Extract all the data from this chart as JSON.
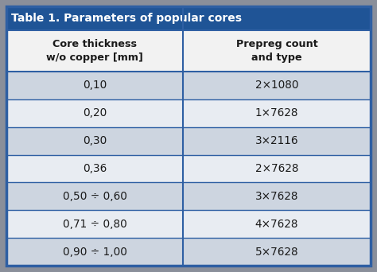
{
  "title": "Table 1. Parameters of popular cores",
  "col1_header": "Core thickness\nw/o copper [mm]",
  "col2_header": "Prepreg count\nand type",
  "rows": [
    [
      "0,10",
      "2×1080"
    ],
    [
      "0,20",
      "1×7628"
    ],
    [
      "0,30",
      "3×2116"
    ],
    [
      "0,36",
      "2×7628"
    ],
    [
      "0,50 ÷ 0,60",
      "3×7628"
    ],
    [
      "0,71 ÷ 0,80",
      "4×7628"
    ],
    [
      "0,90 ÷ 1,00",
      "5×7628"
    ]
  ],
  "title_bg": "#1f5496",
  "title_fg": "#ffffff",
  "header_bg": "#f2f2f2",
  "header_fg": "#1a1a1a",
  "row_bg_even": "#cdd5e0",
  "row_bg_odd": "#e8ecf2",
  "row_fg": "#1a1a1a",
  "border_color": "#2e5fa3",
  "divider_color": "#2e5fa3",
  "outer_bg": "#8a8f9a",
  "col_split": 0.485,
  "title_fontsize": 10.0,
  "header_fontsize": 9.2,
  "data_fontsize": 9.8
}
